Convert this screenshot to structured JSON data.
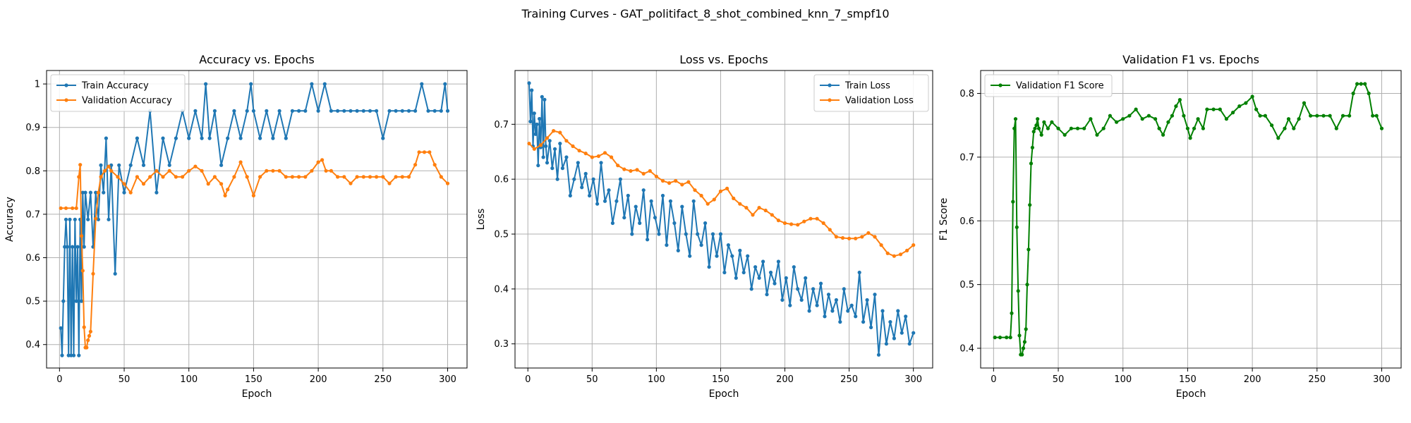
{
  "figure": {
    "title": "Training Curves - GAT_politifact_8_shot_combined_knn_7_smpf10"
  },
  "colors": {
    "train": "#1f77b4",
    "validation": "#ff7f0e",
    "f1": "#008000",
    "grid": "#b0b0b0"
  },
  "chart_data": [
    {
      "type": "line",
      "title": "Accuracy vs. Epochs",
      "xlabel": "Epoch",
      "ylabel": "Accuracy",
      "xlim": [
        -10,
        315
      ],
      "ylim": [
        0.346,
        1.031
      ],
      "xticks": [
        0,
        50,
        100,
        150,
        200,
        250,
        300
      ],
      "yticks": [
        0.4,
        0.5,
        0.6,
        0.7,
        0.8,
        0.9,
        1.0
      ],
      "grid": true,
      "legend": "upper left",
      "series": [
        {
          "name": "Train Accuracy",
          "color": "#1f77b4",
          "x": [
            1,
            2,
            3,
            4,
            5,
            6,
            7,
            8,
            9,
            10,
            11,
            12,
            13,
            14,
            15,
            16,
            17,
            18,
            19,
            20,
            22,
            24,
            26,
            28,
            30,
            32,
            34,
            36,
            38,
            40,
            43,
            46,
            50,
            55,
            60,
            65,
            70,
            75,
            80,
            85,
            90,
            95,
            100,
            105,
            110,
            113,
            116,
            120,
            125,
            130,
            135,
            140,
            145,
            148,
            150,
            155,
            160,
            165,
            170,
            175,
            180,
            185,
            190,
            195,
            200,
            205,
            210,
            215,
            220,
            225,
            230,
            235,
            240,
            245,
            250,
            255,
            260,
            265,
            270,
            275,
            280,
            285,
            290,
            295,
            298,
            300
          ],
          "y": [
            0.438,
            0.375,
            0.5,
            0.625,
            0.688,
            0.625,
            0.375,
            0.688,
            0.375,
            0.625,
            0.375,
            0.688,
            0.5,
            0.625,
            0.375,
            0.688,
            0.5,
            0.75,
            0.625,
            0.75,
            0.688,
            0.75,
            0.625,
            0.75,
            0.688,
            0.813,
            0.75,
            0.875,
            0.688,
            0.813,
            0.563,
            0.813,
            0.75,
            0.813,
            0.875,
            0.813,
            0.938,
            0.75,
            0.875,
            0.813,
            0.875,
            0.938,
            0.875,
            0.938,
            0.875,
            1.0,
            0.875,
            0.938,
            0.813,
            0.875,
            0.938,
            0.875,
            0.938,
            1.0,
            0.938,
            0.875,
            0.938,
            0.875,
            0.938,
            0.875,
            0.938,
            0.938,
            0.938,
            1.0,
            0.938,
            1.0,
            0.938,
            0.938,
            0.938,
            0.938,
            0.938,
            0.938,
            0.938,
            0.938,
            0.875,
            0.938,
            0.938,
            0.938,
            0.938,
            0.938,
            1.0,
            0.938,
            0.938,
            0.938,
            1.0,
            0.938
          ]
        },
        {
          "name": "Validation Accuracy",
          "color": "#ff7f0e",
          "x": [
            1,
            5,
            10,
            13,
            15,
            16,
            17,
            18,
            19,
            20,
            21,
            22,
            23,
            24,
            26,
            28,
            30,
            32,
            35,
            38,
            40,
            45,
            50,
            55,
            60,
            65,
            70,
            75,
            80,
            85,
            90,
            95,
            100,
            105,
            110,
            115,
            120,
            125,
            128,
            130,
            135,
            140,
            145,
            150,
            155,
            160,
            165,
            170,
            175,
            180,
            185,
            190,
            195,
            200,
            203,
            206,
            210,
            215,
            220,
            225,
            230,
            235,
            240,
            245,
            250,
            255,
            260,
            265,
            270,
            275,
            278,
            282,
            286,
            290,
            295,
            300
          ],
          "y": [
            0.714,
            0.714,
            0.714,
            0.714,
            0.786,
            0.814,
            0.65,
            0.57,
            0.44,
            0.393,
            0.393,
            0.41,
            0.42,
            0.43,
            0.563,
            0.69,
            0.75,
            0.786,
            0.8,
            0.81,
            0.8,
            0.786,
            0.77,
            0.75,
            0.786,
            0.77,
            0.786,
            0.8,
            0.786,
            0.8,
            0.786,
            0.786,
            0.8,
            0.81,
            0.8,
            0.77,
            0.786,
            0.77,
            0.743,
            0.757,
            0.786,
            0.82,
            0.786,
            0.743,
            0.786,
            0.8,
            0.8,
            0.8,
            0.786,
            0.786,
            0.786,
            0.786,
            0.8,
            0.82,
            0.825,
            0.8,
            0.8,
            0.786,
            0.786,
            0.771,
            0.786,
            0.786,
            0.786,
            0.786,
            0.786,
            0.771,
            0.786,
            0.786,
            0.786,
            0.814,
            0.843,
            0.843,
            0.843,
            0.814,
            0.786,
            0.771
          ]
        }
      ]
    },
    {
      "type": "line",
      "title": "Loss vs. Epochs",
      "xlabel": "Epoch",
      "ylabel": "Loss",
      "xlim": [
        -10,
        315
      ],
      "ylim": [
        0.256,
        0.798
      ],
      "xticks": [
        0,
        50,
        100,
        150,
        200,
        250,
        300
      ],
      "yticks": [
        0.3,
        0.4,
        0.5,
        0.6,
        0.7
      ],
      "grid": true,
      "legend": "upper right",
      "series": [
        {
          "name": "Train Loss",
          "color": "#1f77b4",
          "x": [
            1,
            2,
            3,
            4,
            5,
            6,
            7,
            8,
            9,
            10,
            11,
            12,
            13,
            14,
            15,
            17,
            19,
            21,
            23,
            25,
            27,
            30,
            33,
            36,
            39,
            42,
            45,
            48,
            51,
            54,
            57,
            60,
            63,
            66,
            69,
            72,
            75,
            78,
            81,
            84,
            87,
            90,
            93,
            96,
            99,
            102,
            105,
            108,
            111,
            114,
            117,
            120,
            123,
            126,
            129,
            132,
            135,
            138,
            141,
            144,
            147,
            150,
            153,
            156,
            159,
            162,
            165,
            168,
            171,
            174,
            177,
            180,
            183,
            186,
            189,
            192,
            195,
            198,
            201,
            204,
            207,
            210,
            213,
            216,
            219,
            222,
            225,
            228,
            231,
            234,
            237,
            240,
            243,
            246,
            249,
            252,
            255,
            258,
            261,
            264,
            267,
            270,
            273,
            276,
            279,
            282,
            285,
            288,
            291,
            294,
            297,
            300
          ],
          "y": [
            0.775,
            0.705,
            0.762,
            0.66,
            0.72,
            0.682,
            0.7,
            0.625,
            0.71,
            0.658,
            0.75,
            0.64,
            0.745,
            0.66,
            0.63,
            0.67,
            0.62,
            0.655,
            0.6,
            0.665,
            0.62,
            0.64,
            0.57,
            0.6,
            0.63,
            0.585,
            0.61,
            0.57,
            0.6,
            0.555,
            0.63,
            0.56,
            0.58,
            0.52,
            0.56,
            0.6,
            0.53,
            0.57,
            0.5,
            0.55,
            0.52,
            0.58,
            0.49,
            0.56,
            0.53,
            0.5,
            0.57,
            0.48,
            0.56,
            0.52,
            0.47,
            0.55,
            0.5,
            0.46,
            0.56,
            0.5,
            0.48,
            0.52,
            0.44,
            0.5,
            0.46,
            0.5,
            0.43,
            0.48,
            0.46,
            0.42,
            0.47,
            0.43,
            0.46,
            0.4,
            0.44,
            0.42,
            0.45,
            0.39,
            0.43,
            0.41,
            0.45,
            0.38,
            0.42,
            0.37,
            0.44,
            0.4,
            0.38,
            0.42,
            0.36,
            0.4,
            0.37,
            0.41,
            0.35,
            0.39,
            0.36,
            0.38,
            0.34,
            0.4,
            0.36,
            0.37,
            0.35,
            0.43,
            0.34,
            0.38,
            0.33,
            0.39,
            0.28,
            0.36,
            0.3,
            0.34,
            0.31,
            0.36,
            0.32,
            0.35,
            0.3,
            0.32
          ]
        },
        {
          "name": "Validation Loss",
          "color": "#ff7f0e",
          "x": [
            1,
            5,
            10,
            15,
            20,
            25,
            30,
            35,
            40,
            45,
            50,
            55,
            60,
            65,
            70,
            75,
            80,
            85,
            90,
            95,
            100,
            105,
            110,
            115,
            120,
            125,
            130,
            135,
            140,
            145,
            150,
            155,
            160,
            165,
            170,
            175,
            180,
            185,
            190,
            195,
            200,
            205,
            210,
            215,
            220,
            225,
            230,
            235,
            240,
            245,
            250,
            255,
            260,
            265,
            270,
            275,
            280,
            285,
            290,
            295,
            300
          ],
          "y": [
            0.665,
            0.655,
            0.662,
            0.675,
            0.688,
            0.685,
            0.67,
            0.66,
            0.652,
            0.647,
            0.64,
            0.642,
            0.648,
            0.64,
            0.625,
            0.618,
            0.615,
            0.617,
            0.61,
            0.615,
            0.605,
            0.597,
            0.593,
            0.597,
            0.59,
            0.595,
            0.58,
            0.57,
            0.555,
            0.563,
            0.578,
            0.583,
            0.565,
            0.555,
            0.548,
            0.535,
            0.548,
            0.543,
            0.535,
            0.525,
            0.52,
            0.518,
            0.517,
            0.523,
            0.528,
            0.528,
            0.52,
            0.508,
            0.495,
            0.493,
            0.492,
            0.492,
            0.495,
            0.502,
            0.495,
            0.48,
            0.465,
            0.46,
            0.463,
            0.47,
            0.48
          ]
        }
      ]
    },
    {
      "type": "line",
      "title": "Validation F1 vs. Epochs",
      "xlabel": "Epoch",
      "ylabel": "F1 Score",
      "xlim": [
        -10,
        315
      ],
      "ylim": [
        0.369,
        0.836
      ],
      "xticks": [
        0,
        50,
        100,
        150,
        200,
        250,
        300
      ],
      "yticks": [
        0.4,
        0.5,
        0.6,
        0.7,
        0.8
      ],
      "grid": true,
      "legend": "upper left",
      "series": [
        {
          "name": "Validation F1 Score",
          "color": "#008000",
          "x": [
            1,
            5,
            10,
            13,
            14,
            15,
            16,
            17,
            18,
            19,
            20,
            21,
            22,
            23,
            24,
            25,
            26,
            27,
            28,
            29,
            30,
            31,
            32,
            33,
            34,
            35,
            37,
            39,
            42,
            45,
            50,
            55,
            60,
            65,
            70,
            75,
            80,
            85,
            90,
            95,
            100,
            105,
            110,
            115,
            120,
            125,
            128,
            131,
            135,
            138,
            141,
            144,
            147,
            150,
            152,
            155,
            158,
            162,
            165,
            170,
            175,
            180,
            185,
            190,
            195,
            200,
            203,
            206,
            210,
            215,
            220,
            225,
            228,
            232,
            236,
            240,
            245,
            250,
            255,
            260,
            265,
            270,
            275,
            278,
            281,
            284,
            287,
            290,
            293,
            296,
            300
          ],
          "y": [
            0.417,
            0.417,
            0.417,
            0.417,
            0.455,
            0.63,
            0.745,
            0.76,
            0.59,
            0.49,
            0.42,
            0.39,
            0.39,
            0.4,
            0.41,
            0.43,
            0.5,
            0.555,
            0.625,
            0.69,
            0.715,
            0.74,
            0.745,
            0.75,
            0.76,
            0.745,
            0.735,
            0.755,
            0.745,
            0.755,
            0.745,
            0.735,
            0.745,
            0.745,
            0.745,
            0.76,
            0.735,
            0.745,
            0.765,
            0.755,
            0.76,
            0.765,
            0.775,
            0.76,
            0.765,
            0.76,
            0.745,
            0.735,
            0.755,
            0.765,
            0.78,
            0.79,
            0.765,
            0.745,
            0.73,
            0.745,
            0.76,
            0.745,
            0.775,
            0.775,
            0.775,
            0.76,
            0.77,
            0.78,
            0.785,
            0.795,
            0.775,
            0.765,
            0.765,
            0.75,
            0.73,
            0.745,
            0.76,
            0.745,
            0.76,
            0.785,
            0.765,
            0.765,
            0.765,
            0.765,
            0.745,
            0.765,
            0.765,
            0.8,
            0.815,
            0.815,
            0.815,
            0.8,
            0.765,
            0.765,
            0.745
          ]
        }
      ]
    }
  ]
}
